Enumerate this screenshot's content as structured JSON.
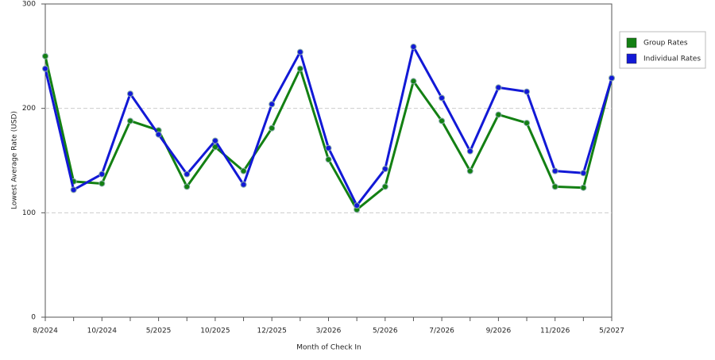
{
  "chart_data": {
    "type": "line",
    "x_label": "Month of Check In",
    "y_label": "Lowest Average Rate (USD)",
    "categories": [
      "8/2024",
      null,
      "10/2024",
      null,
      "5/2025",
      null,
      "10/2025",
      null,
      "12/2025",
      null,
      "3/2026",
      null,
      "5/2026",
      null,
      "7/2026",
      null,
      "9/2026",
      null,
      "11/2026",
      null,
      "5/2027"
    ],
    "series": [
      {
        "name": "Group Rates",
        "color": "#138013",
        "values": [
          250,
          130,
          128,
          188,
          179,
          125,
          163,
          140,
          181,
          238,
          151,
          103,
          125,
          226,
          188,
          140,
          194,
          186,
          125,
          124,
          229
        ]
      },
      {
        "name": "Individual Rates",
        "color": "#1219d6",
        "values": [
          238,
          122,
          137,
          214,
          175,
          137,
          169,
          127,
          204,
          254,
          162,
          107,
          142,
          259,
          210,
          159,
          220,
          216,
          140,
          138,
          229
        ]
      }
    ],
    "ylim": [
      0,
      300
    ],
    "yticks": [
      0,
      100,
      200,
      300
    ],
    "grid": true,
    "legend": "right"
  }
}
